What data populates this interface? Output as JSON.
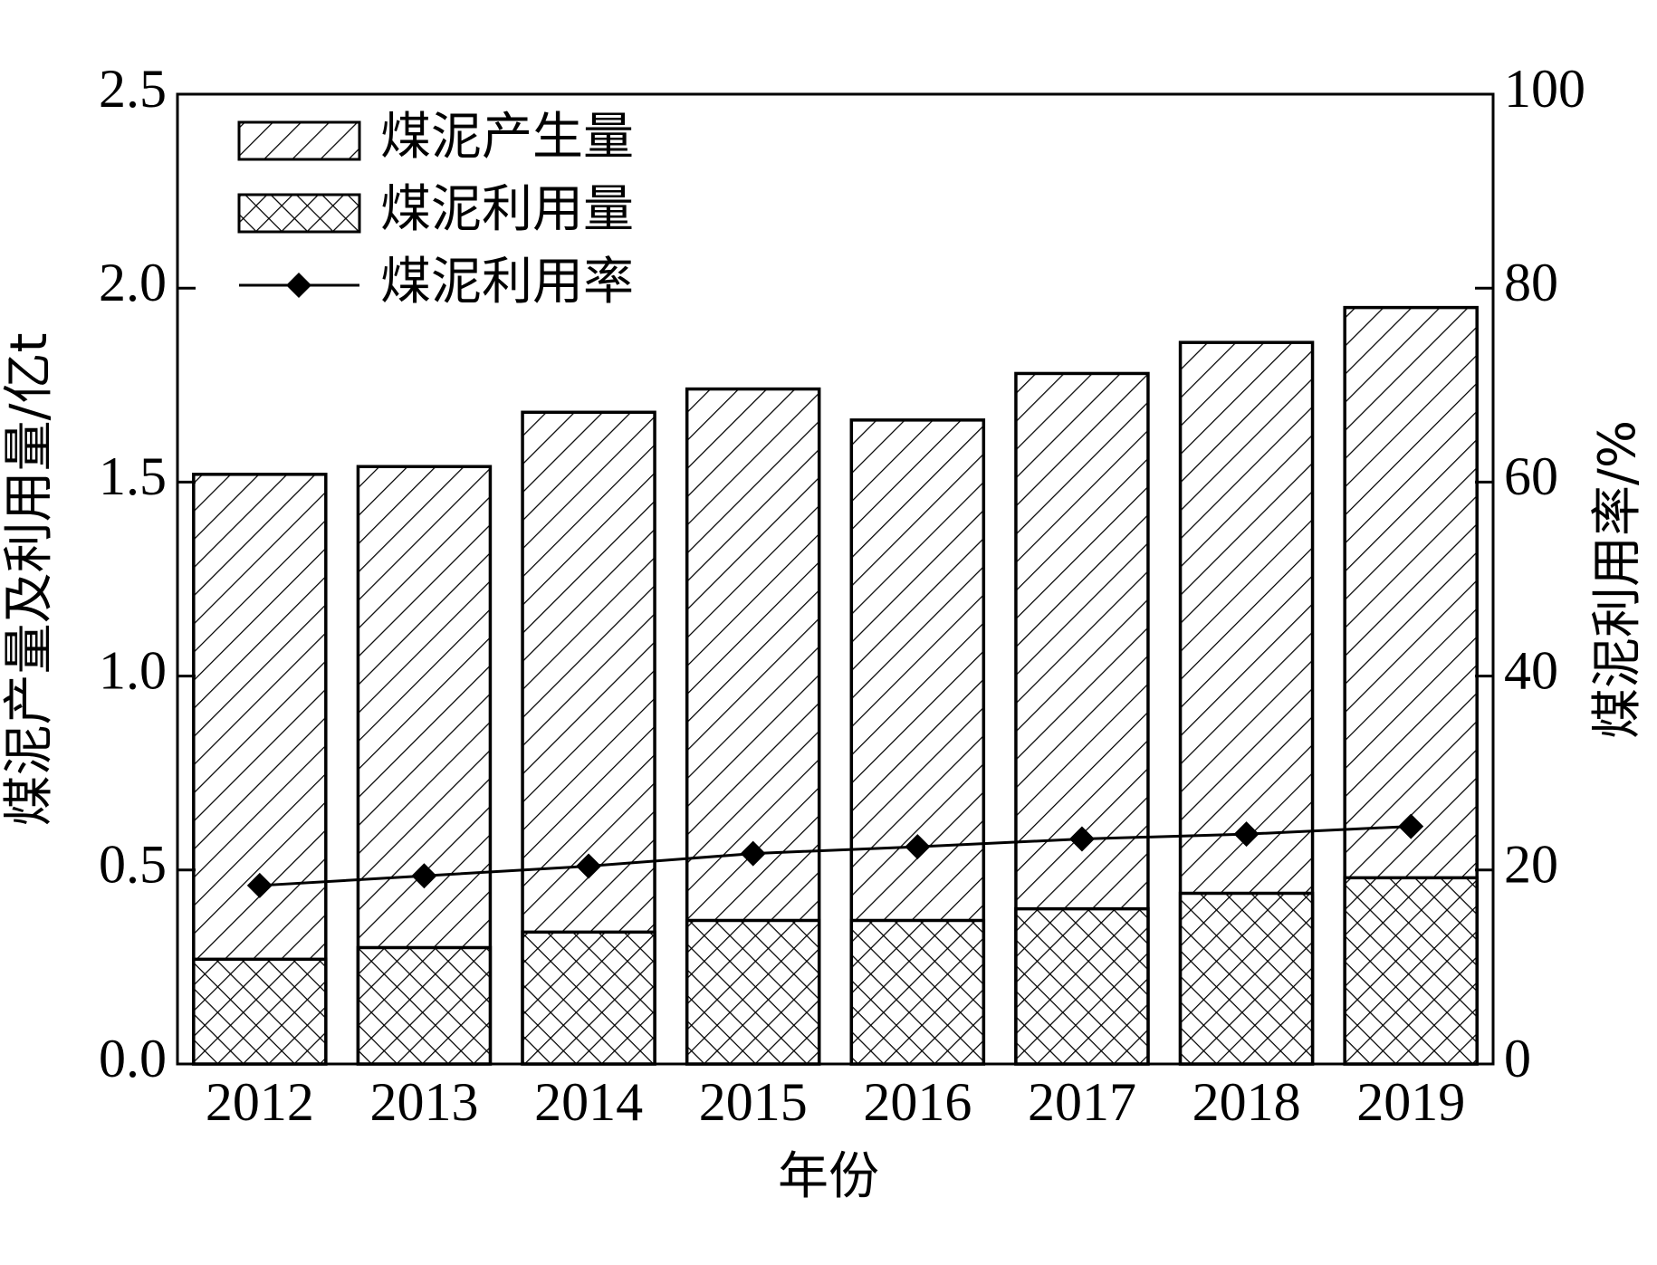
{
  "chart_data": {
    "type": "bar",
    "x_label": "年份",
    "y_label": "煤泥产量及利用量/亿t",
    "y2_label": "煤泥利用率/%",
    "categories": [
      "2012",
      "2013",
      "2014",
      "2015",
      "2016",
      "2017",
      "2018",
      "2019"
    ],
    "series": [
      {
        "name": "煤泥产生量",
        "type": "bar",
        "color": "#000000",
        "hatch": "/",
        "values": [
          1.52,
          1.54,
          1.68,
          1.74,
          1.66,
          1.78,
          1.86,
          1.95
        ]
      },
      {
        "name": "煤泥利用量",
        "type": "bar",
        "color": "#000000",
        "hatch": "x",
        "values": [
          0.27,
          0.3,
          0.34,
          0.37,
          0.37,
          0.4,
          0.44,
          0.48
        ]
      },
      {
        "name": "煤泥利用率",
        "type": "line",
        "axis": "y2",
        "color": "#000000",
        "marker": "diamond",
        "values": [
          18.4,
          19.4,
          20.4,
          21.7,
          22.4,
          23.2,
          23.7,
          24.5
        ]
      }
    ],
    "ylim": [
      0,
      2.5
    ],
    "yticks": [
      {
        "value": 0,
        "label": "0.0"
      },
      0.5,
      {
        "value": 1,
        "label": "1.0"
      },
      1.5,
      {
        "value": 2,
        "label": "2.0"
      },
      2.5
    ],
    "y2lim": [
      0,
      100
    ],
    "y2ticks": [
      0,
      20,
      40,
      60,
      80,
      100
    ],
    "legend": "upper left"
  }
}
